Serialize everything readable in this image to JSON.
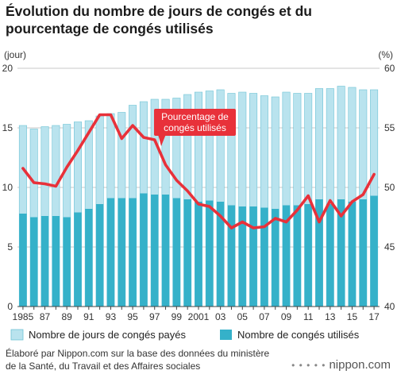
{
  "chart_data": {
    "type": "bar+line",
    "title_lines": [
      "Évolution du nombre de jours de congés et du",
      "pourcentage de congés utilisés"
    ],
    "left_axis_unit": "(jour)",
    "right_axis_unit": "(%)",
    "left_ylim": [
      0,
      20
    ],
    "left_ticks": [
      "0",
      "5",
      "10",
      "15",
      "20"
    ],
    "right_ylim": [
      40,
      60
    ],
    "right_ticks": [
      "40",
      "45",
      "50",
      "55",
      "60"
    ],
    "x": [
      1985,
      1986,
      1987,
      1988,
      1989,
      1990,
      1991,
      1992,
      1993,
      1994,
      1995,
      1996,
      1997,
      1998,
      1999,
      2000,
      2001,
      2002,
      2003,
      2004,
      2005,
      2006,
      2007,
      2008,
      2009,
      2010,
      2011,
      2012,
      2013,
      2014,
      2015,
      2016,
      2017
    ],
    "x_tick_labels": [
      "1985",
      "87",
      "89",
      "91",
      "93",
      "95",
      "97",
      "99",
      "2001",
      "03",
      "05",
      "07",
      "09",
      "11",
      "13",
      "15",
      "17"
    ],
    "series": [
      {
        "name": "Nombre de jours de congés payés",
        "axis": "left",
        "color": "#b9e3ee",
        "values": [
          15.2,
          14.9,
          15.1,
          15.2,
          15.3,
          15.5,
          15.6,
          16.0,
          16.2,
          16.3,
          16.9,
          17.2,
          17.4,
          17.4,
          17.5,
          17.8,
          18.0,
          18.1,
          18.2,
          17.9,
          18.0,
          17.9,
          17.7,
          17.6,
          18.0,
          17.9,
          17.9,
          18.3,
          18.3,
          18.5,
          18.4,
          18.2,
          18.2
        ]
      },
      {
        "name": "Nombre de congés utilisés",
        "axis": "left",
        "color": "#35b1c9",
        "values": [
          7.8,
          7.5,
          7.6,
          7.6,
          7.5,
          7.9,
          8.2,
          8.6,
          9.1,
          9.1,
          9.1,
          9.5,
          9.4,
          9.4,
          9.1,
          9.0,
          8.8,
          8.9,
          8.8,
          8.5,
          8.4,
          8.4,
          8.3,
          8.2,
          8.5,
          8.5,
          8.6,
          9.0,
          8.6,
          9.0,
          8.8,
          9.0,
          9.3
        ]
      },
      {
        "name": "Pourcentage de congés utilisés",
        "axis": "right",
        "color": "#e8313a",
        "values": [
          51.6,
          50.4,
          50.3,
          50.1,
          51.7,
          53.1,
          54.6,
          56.1,
          56.1,
          54.1,
          55.2,
          54.2,
          54.0,
          51.9,
          50.6,
          49.7,
          48.6,
          48.4,
          47.6,
          46.6,
          47.1,
          46.6,
          46.7,
          47.4,
          47.1,
          48.1,
          49.3,
          47.1,
          48.9,
          47.6,
          48.8,
          49.4,
          51.1
        ]
      }
    ],
    "annotation_lines": [
      "Pourcentage de",
      "congés utilisés"
    ],
    "grid": true,
    "legend_position": "bottom"
  },
  "source_lines": [
    "Élaboré par Nippon.com sur la base des données du ministère",
    "de la Santé, du Travail et des Affaires sociales"
  ],
  "brand": {
    "dots": "• • • • •",
    "name": "nippon.com"
  }
}
